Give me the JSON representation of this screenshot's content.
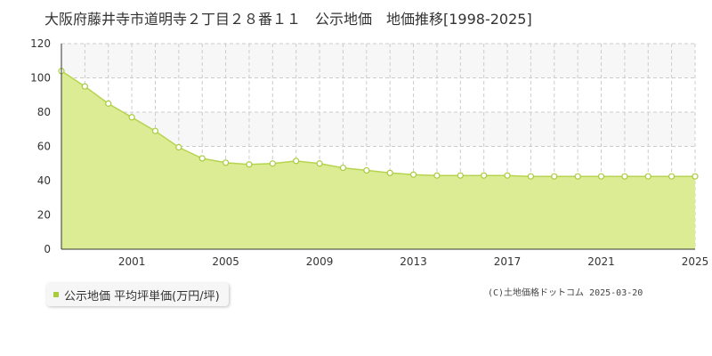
{
  "title": "大阪府藤井寺市道明寺２丁目２８番１１　公示地価　地価推移[1998-2025]",
  "legend_label": "公示地価 平均坪単価(万円/坪)",
  "credit": "(C)土地価格ドットコム 2025-03-20",
  "colors": {
    "fill": "#dcec94",
    "line": "#b6d44e",
    "marker_fill": "#ffffff",
    "marker_stroke": "#a8cc3c",
    "band": "#f7f7f7",
    "grid": "#cccccc",
    "axis": "#333333"
  },
  "chart_data": {
    "type": "area",
    "x": [
      1998,
      1999,
      2000,
      2001,
      2002,
      2003,
      2004,
      2005,
      2006,
      2007,
      2008,
      2009,
      2010,
      2011,
      2012,
      2013,
      2014,
      2015,
      2016,
      2017,
      2018,
      2019,
      2020,
      2021,
      2022,
      2023,
      2024,
      2025
    ],
    "series": [
      {
        "name": "公示地価 平均坪単価(万円/坪)",
        "values": [
          104,
          95,
          85,
          77,
          69,
          59.5,
          53,
          50.5,
          49.5,
          50,
          51.5,
          50,
          47.5,
          46,
          44.5,
          43.5,
          43,
          43,
          43,
          43,
          42.5,
          42.5,
          42.5,
          42.5,
          42.5,
          42.5,
          42.5,
          42.5
        ]
      }
    ],
    "ylim": [
      0,
      120
    ],
    "yticks": [
      0,
      20,
      40,
      60,
      80,
      100,
      120
    ],
    "xlim": [
      1998,
      2025
    ],
    "xtick_labels": [
      "2001",
      "2005",
      "2009",
      "2013",
      "2017",
      "2021",
      "2025"
    ],
    "grid": true
  }
}
